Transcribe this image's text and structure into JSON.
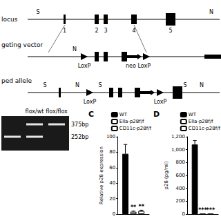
{
  "diagram": {
    "rows": [
      {
        "label": "locus",
        "sites": [
          "S",
          "N"
        ],
        "exon_numbers": [
          "1",
          "2",
          "3",
          "4",
          "5"
        ]
      },
      {
        "label": "geting vector",
        "sites": [
          "N"
        ],
        "loxp_labels": [
          "LoxP",
          "neo LoxP"
        ]
      },
      {
        "label": "ped allele",
        "sites": [
          "S",
          "N",
          "S",
          "S",
          "N"
        ],
        "loxp_labels": [
          "LoxP",
          "LoxP"
        ]
      }
    ]
  },
  "gel": {
    "lanes": [
      {
        "label": null,
        "bands": [
          "252bp"
        ]
      },
      {
        "label": "flox/wt",
        "bands": [
          "375bp",
          "252bp"
        ]
      },
      {
        "label": "flox/flox",
        "bands": [
          "375bp"
        ]
      }
    ],
    "markers": [
      "375bp",
      "252bp"
    ]
  },
  "chart_data": [
    {
      "type": "bar",
      "title": "C",
      "ylabel": "Relative p28 expression",
      "categories": [
        null
      ],
      "series": [
        {
          "name": "WT",
          "color": "#000000",
          "values": [
            78
          ],
          "errors": [
            12
          ]
        },
        {
          "name": "Ella-p28f/f",
          "color": "#ffffff",
          "values": [
            3
          ],
          "errors": [
            1
          ],
          "annotations": [
            "**"
          ]
        },
        {
          "name": "CD11c-p28f/f",
          "color": "#ffffff",
          "values": [
            4
          ],
          "errors": [
            1
          ],
          "annotations": [
            "**"
          ]
        }
      ],
      "ylim": [
        0,
        100
      ],
      "yticks": [
        0,
        20,
        40,
        60,
        80,
        100
      ],
      "grid": false,
      "legend": "upper right"
    },
    {
      "type": "bar",
      "title": "D",
      "ylabel": "p28 (pg/ml)",
      "categories": [
        null
      ],
      "series": [
        {
          "name": "WT",
          "color": "#000000",
          "values": [
            1080
          ],
          "errors": [
            60
          ]
        },
        {
          "name": "Ella-p28f/f",
          "color": "#ffffff",
          "values": [
            5
          ],
          "annotations": [
            "***"
          ]
        },
        {
          "name": "CD11c-p28f/f",
          "color": "#ffffff",
          "values": [
            5
          ],
          "annotations": [
            "***"
          ]
        }
      ],
      "ylim": [
        0,
        1200
      ],
      "yticks": [
        0,
        200,
        400,
        600,
        800,
        1000,
        1200
      ],
      "grid": false,
      "legend": "upper right"
    }
  ]
}
